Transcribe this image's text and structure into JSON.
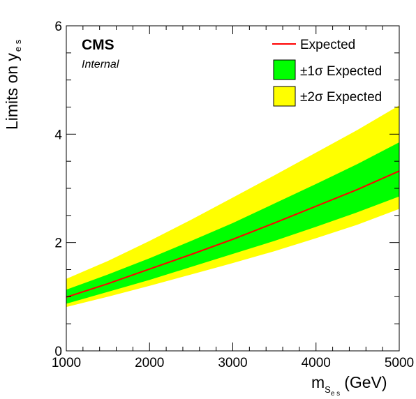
{
  "chart_data": {
    "type": "area",
    "x": [
      1000,
      1500,
      2000,
      2500,
      3000,
      3500,
      4000,
      4500,
      5000
    ],
    "series": [
      {
        "name": "Expected",
        "values": [
          0.99,
          1.24,
          1.51,
          1.78,
          2.06,
          2.36,
          2.67,
          2.98,
          3.32
        ]
      },
      {
        "name": "±1σ Expected",
        "lower": [
          0.87,
          1.09,
          1.31,
          1.55,
          1.79,
          2.03,
          2.29,
          2.56,
          2.85
        ],
        "upper": [
          1.13,
          1.41,
          1.71,
          2.03,
          2.36,
          2.72,
          3.08,
          3.45,
          3.85
        ]
      },
      {
        "name": "±2σ Expected",
        "lower": [
          0.81,
          1.0,
          1.2,
          1.41,
          1.62,
          1.84,
          2.08,
          2.33,
          2.62
        ],
        "upper": [
          1.33,
          1.66,
          2.03,
          2.42,
          2.83,
          3.24,
          3.66,
          4.08,
          4.53
        ]
      }
    ],
    "xlabel_main": "m",
    "xlabel_sub1": "S",
    "xlabel_sub2": "e s",
    "xlabel_unit": "(GeV)",
    "ylabel_main": "Limits on y",
    "ylabel_sub": "e s",
    "xlim": [
      1000,
      5000
    ],
    "ylim": [
      0,
      6
    ],
    "xticks": [
      1000,
      2000,
      3000,
      4000,
      5000
    ],
    "yticks": [
      0,
      2,
      4,
      6
    ],
    "colors": {
      "expected": "#ff0000",
      "one_sigma": "#00ff00",
      "two_sigma": "#ffff00"
    },
    "legend_position": "top-right",
    "grid": false
  },
  "labels": {
    "cms": "CMS",
    "internal": "Internal",
    "legend_expected": "Expected",
    "legend_one_sigma": "±1σ Expected",
    "legend_two_sigma": "±2σ Expected"
  }
}
